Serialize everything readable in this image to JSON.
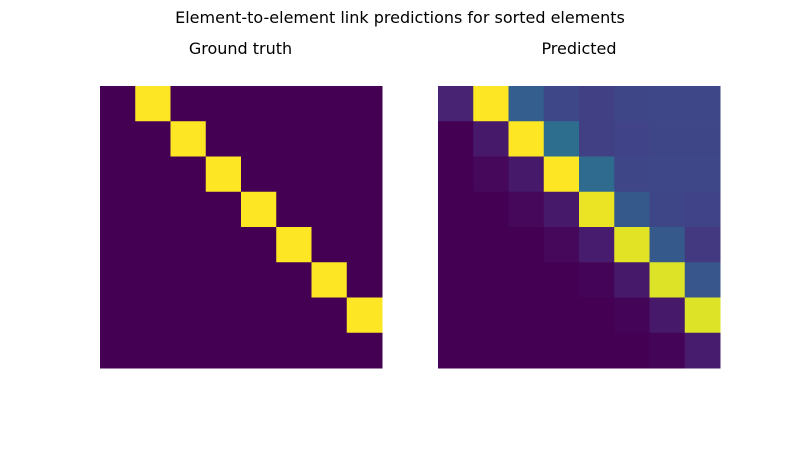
{
  "chart_data": {
    "type": "heatmap",
    "title": "Element-to-element link predictions for sorted elements",
    "colormap": "viridis",
    "value_range": [
      0,
      1
    ],
    "axes_visible": false,
    "panels": [
      {
        "title": "Ground truth",
        "rows": 8,
        "cols": 8,
        "values": [
          [
            0,
            1,
            0,
            0,
            0,
            0,
            0,
            0
          ],
          [
            0,
            0,
            1,
            0,
            0,
            0,
            0,
            0
          ],
          [
            0,
            0,
            0,
            1,
            0,
            0,
            0,
            0
          ],
          [
            0,
            0,
            0,
            0,
            1,
            0,
            0,
            0
          ],
          [
            0,
            0,
            0,
            0,
            0,
            1,
            0,
            0
          ],
          [
            0,
            0,
            0,
            0,
            0,
            0,
            1,
            0
          ],
          [
            0,
            0,
            0,
            0,
            0,
            0,
            0,
            1
          ],
          [
            0,
            0,
            0,
            0,
            0,
            0,
            0,
            0
          ]
        ]
      },
      {
        "title": "Predicted",
        "rows": 8,
        "cols": 8,
        "values": [
          [
            0.1,
            1.0,
            0.3,
            0.22,
            0.19,
            0.21,
            0.22,
            0.22
          ],
          [
            0.0,
            0.07,
            1.0,
            0.36,
            0.19,
            0.2,
            0.21,
            0.21
          ],
          [
            0.0,
            0.02,
            0.07,
            1.0,
            0.35,
            0.21,
            0.22,
            0.22
          ],
          [
            0.0,
            0.0,
            0.02,
            0.07,
            0.97,
            0.28,
            0.21,
            0.2
          ],
          [
            0.0,
            0.0,
            0.0,
            0.02,
            0.08,
            0.96,
            0.28,
            0.17
          ],
          [
            0.0,
            0.0,
            0.0,
            0.0,
            0.01,
            0.07,
            0.95,
            0.27
          ],
          [
            0.0,
            0.0,
            0.0,
            0.0,
            0.0,
            0.01,
            0.07,
            0.95
          ],
          [
            0.0,
            0.0,
            0.0,
            0.0,
            0.0,
            0.0,
            0.01,
            0.08
          ]
        ]
      }
    ]
  }
}
